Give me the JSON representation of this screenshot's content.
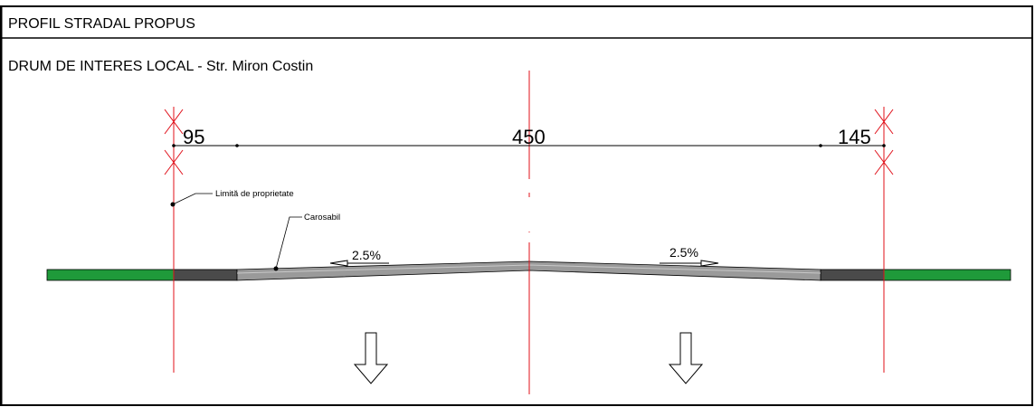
{
  "header": {
    "title": "PROFIL STRADAL PROPUS",
    "subtitle": "DRUM DE INTERES LOCAL - Str. Miron Costin"
  },
  "dimensions": {
    "left": "95",
    "center": "450",
    "right": "145"
  },
  "labels": {
    "property_limit": "Limită de proprietate",
    "carriageway": "Carosabil"
  },
  "slopes": {
    "left": "2.5%",
    "right": "2.5%"
  },
  "colors": {
    "axis_red": "#e0101a",
    "verge_green": "#1f9a3a",
    "curb_dark": "#4a4a4a",
    "asphalt_gray": "#9a9a9a"
  }
}
